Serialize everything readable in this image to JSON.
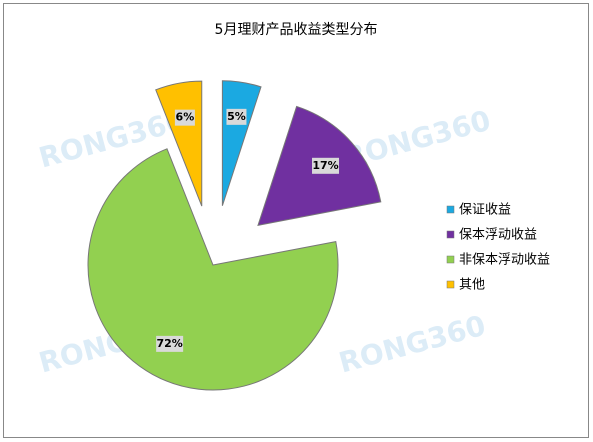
{
  "chart_data": {
    "type": "pie",
    "title": "5月理财产品收益类型分布",
    "categories": [
      "保证收益",
      "保本浮动收益",
      "非保本浮动收益",
      "其他"
    ],
    "values": [
      5,
      17,
      72,
      6
    ],
    "value_labels": [
      "5%",
      "17%",
      "72%",
      "6%"
    ],
    "colors": [
      "#1ba9e1",
      "#7030a0",
      "#92d050",
      "#ffc000"
    ],
    "exploded": [
      true,
      true,
      false,
      true
    ],
    "legend": "right"
  },
  "watermark": "RONG360"
}
